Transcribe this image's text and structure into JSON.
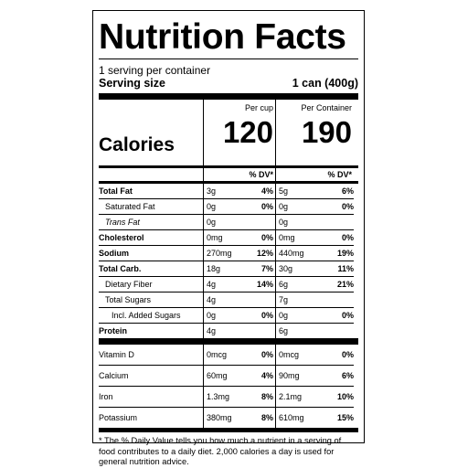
{
  "title": "Nutrition Facts",
  "servings": "1 serving per container",
  "serving_size_label": "Serving size",
  "serving_size_value": "1 can (400g)",
  "calories_label": "Calories",
  "col1_header": "Per cup",
  "col2_header": "Per Container",
  "calories_col1": "120",
  "calories_col2": "190",
  "dv_header": "% DV*",
  "nutrients": [
    {
      "name": "Total Fat",
      "bold": true,
      "indent": 0,
      "amt1": "3g",
      "dv1": "4%",
      "amt2": "5g",
      "dv2": "6%"
    },
    {
      "name": "Saturated Fat",
      "bold": false,
      "indent": 1,
      "amt1": "0g",
      "dv1": "0%",
      "amt2": "0g",
      "dv2": "0%"
    },
    {
      "name": "Trans Fat",
      "bold": false,
      "indent": 1,
      "italic": true,
      "amt1": "0g",
      "dv1": "",
      "amt2": "0g",
      "dv2": ""
    },
    {
      "name": "Cholesterol",
      "bold": true,
      "indent": 0,
      "amt1": "0mg",
      "dv1": "0%",
      "amt2": "0mg",
      "dv2": "0%"
    },
    {
      "name": "Sodium",
      "bold": true,
      "indent": 0,
      "amt1": "270mg",
      "dv1": "12%",
      "amt2": "440mg",
      "dv2": "19%"
    },
    {
      "name": "Total Carb.",
      "bold": true,
      "indent": 0,
      "amt1": "18g",
      "dv1": "7%",
      "amt2": "30g",
      "dv2": "11%"
    },
    {
      "name": "Dietary Fiber",
      "bold": false,
      "indent": 1,
      "amt1": "4g",
      "dv1": "14%",
      "amt2": "6g",
      "dv2": "21%"
    },
    {
      "name": "Total Sugars",
      "bold": false,
      "indent": 1,
      "amt1": "4g",
      "dv1": "",
      "amt2": "7g",
      "dv2": ""
    },
    {
      "name": "Incl. Added Sugars",
      "bold": false,
      "indent": 2,
      "amt1": "0g",
      "dv1": "0%",
      "amt2": "0g",
      "dv2": "0%"
    },
    {
      "name": "Protein",
      "bold": true,
      "indent": 0,
      "amt1": "4g",
      "dv1": "",
      "amt2": "6g",
      "dv2": ""
    }
  ],
  "vitamins": [
    {
      "name": "Vitamin D",
      "amt1": "0mcg",
      "dv1": "0%",
      "amt2": "0mcg",
      "dv2": "0%"
    },
    {
      "name": "Calcium",
      "amt1": "60mg",
      "dv1": "4%",
      "amt2": "90mg",
      "dv2": "6%"
    },
    {
      "name": "Iron",
      "amt1": "1.3mg",
      "dv1": "8%",
      "amt2": "2.1mg",
      "dv2": "10%"
    },
    {
      "name": "Potassium",
      "amt1": "380mg",
      "dv1": "8%",
      "amt2": "610mg",
      "dv2": "15%"
    }
  ],
  "footnote": "* The % Daily Value tells you how much a nutrient in a serving of food contributes to a daily diet. 2,000 calories a day is used for general nutrition advice."
}
